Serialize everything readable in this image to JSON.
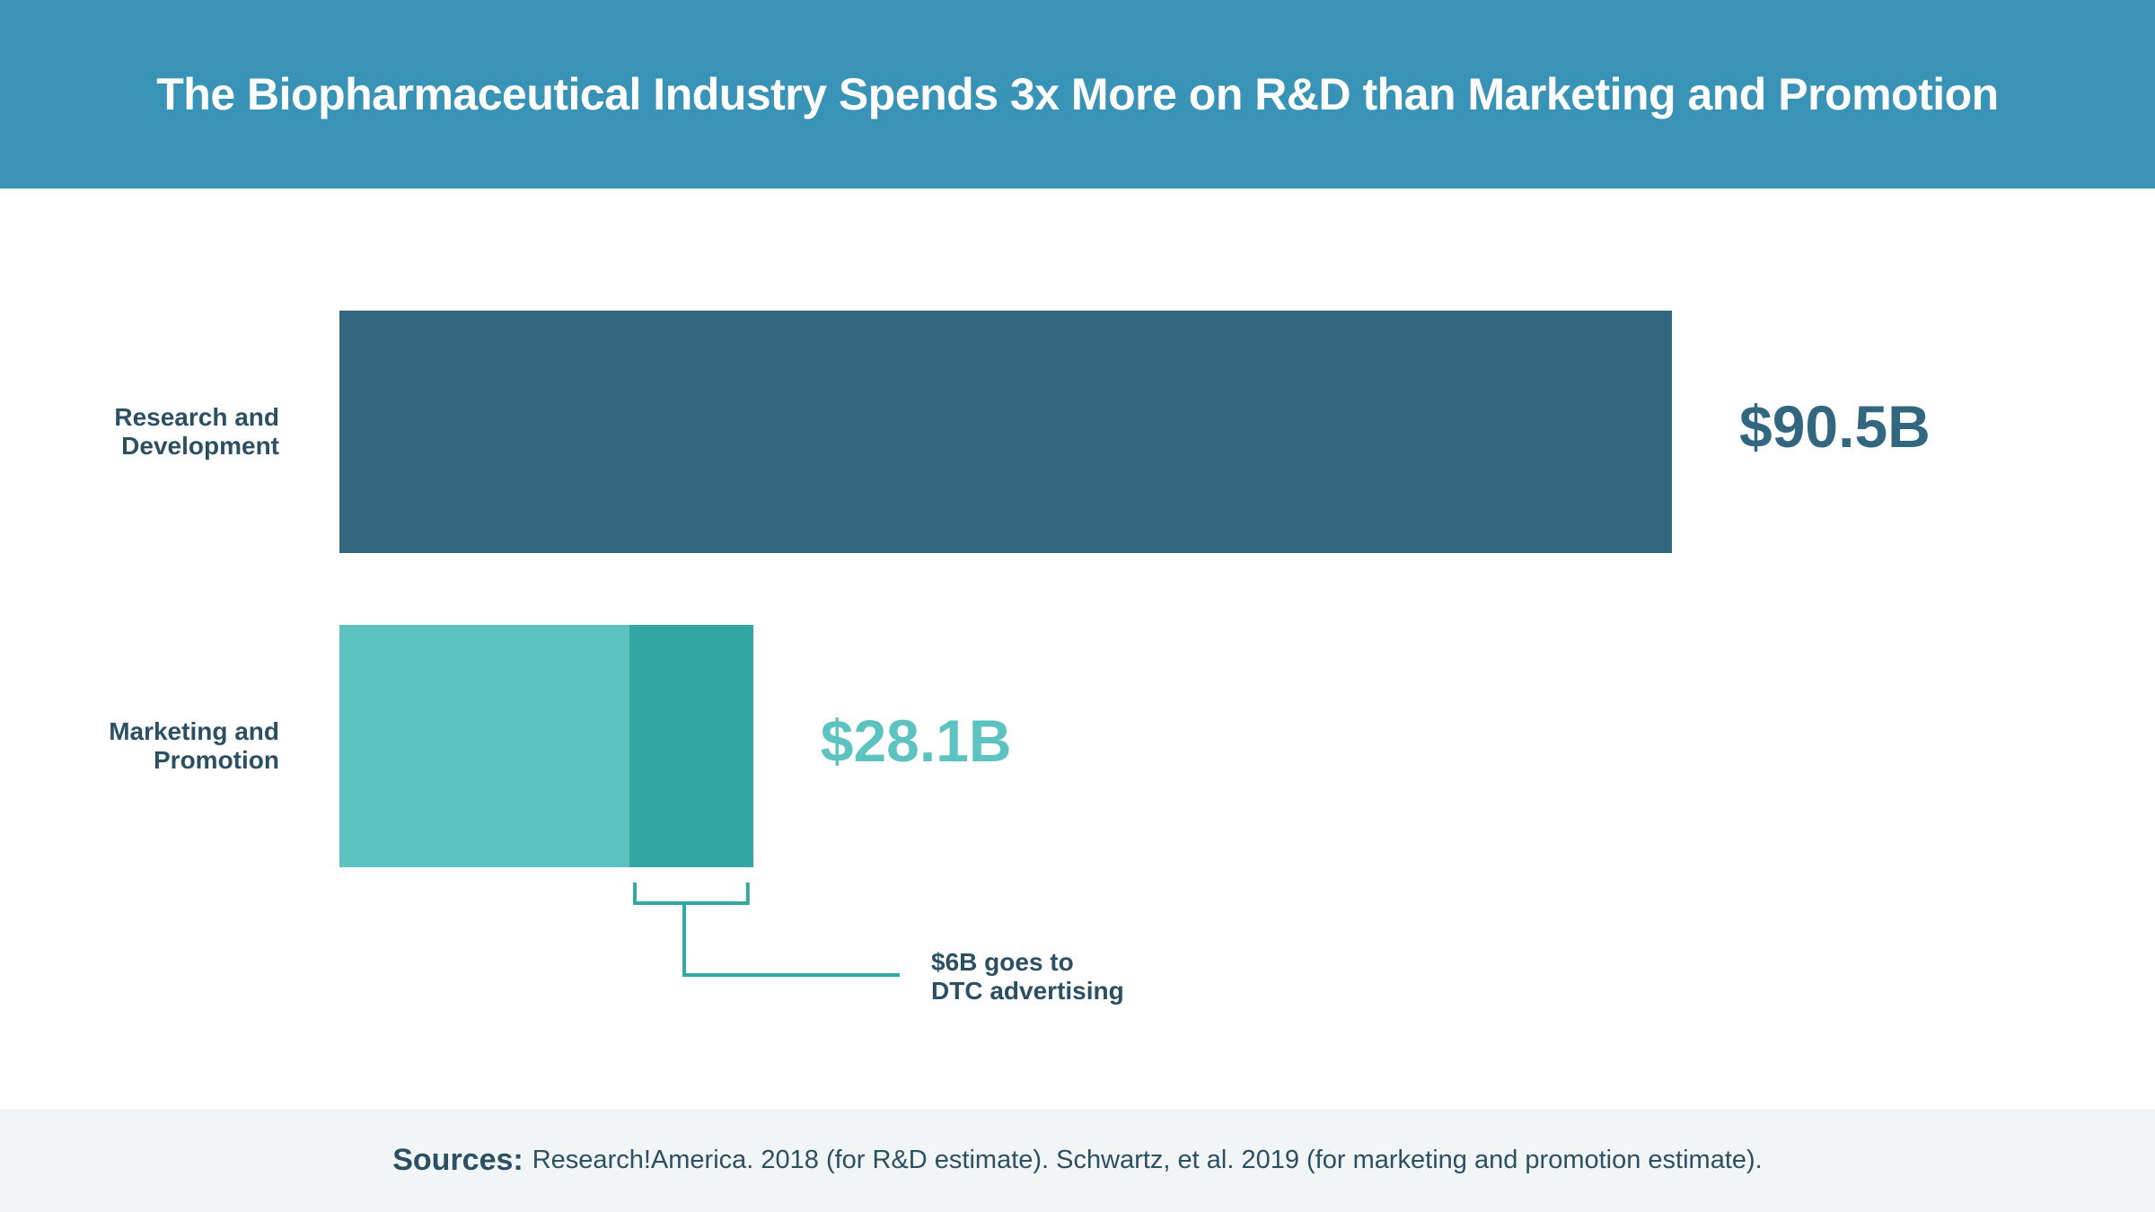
{
  "header": {
    "title": "The Biopharmaceutical Industry Spends 3x More on R&D than Marketing and Promotion"
  },
  "colors": {
    "header_bg": "#3893b6",
    "rd_bar": "#33667f",
    "marketing_bar": "#5cc3c1",
    "dtc_segment": "#35a7a2",
    "rd_label": "#33667f",
    "marketing_label": "#5cc3c1",
    "text_dark": "#2b4f63",
    "bracket": "#35a7a2",
    "footer_bg": "#f2f5f6"
  },
  "chart_data": {
    "type": "bar",
    "orientation": "horizontal",
    "categories": [
      "Research and Development",
      "Marketing and Promotion"
    ],
    "values": [
      90.5,
      28.1
    ],
    "value_labels": [
      "$90.5B",
      "$28.1B"
    ],
    "segments": {
      "category": "Marketing and Promotion",
      "dtc_value": 6
    },
    "annotation": "$6B goes to\nDTC advertising",
    "xlim": [
      0,
      90.5
    ]
  },
  "footer": {
    "sources_label": "Sources:",
    "sources_text": "Research!America. 2018 (for R&D estimate). Schwartz, et al. 2019 (for marketing and promotion estimate)."
  }
}
